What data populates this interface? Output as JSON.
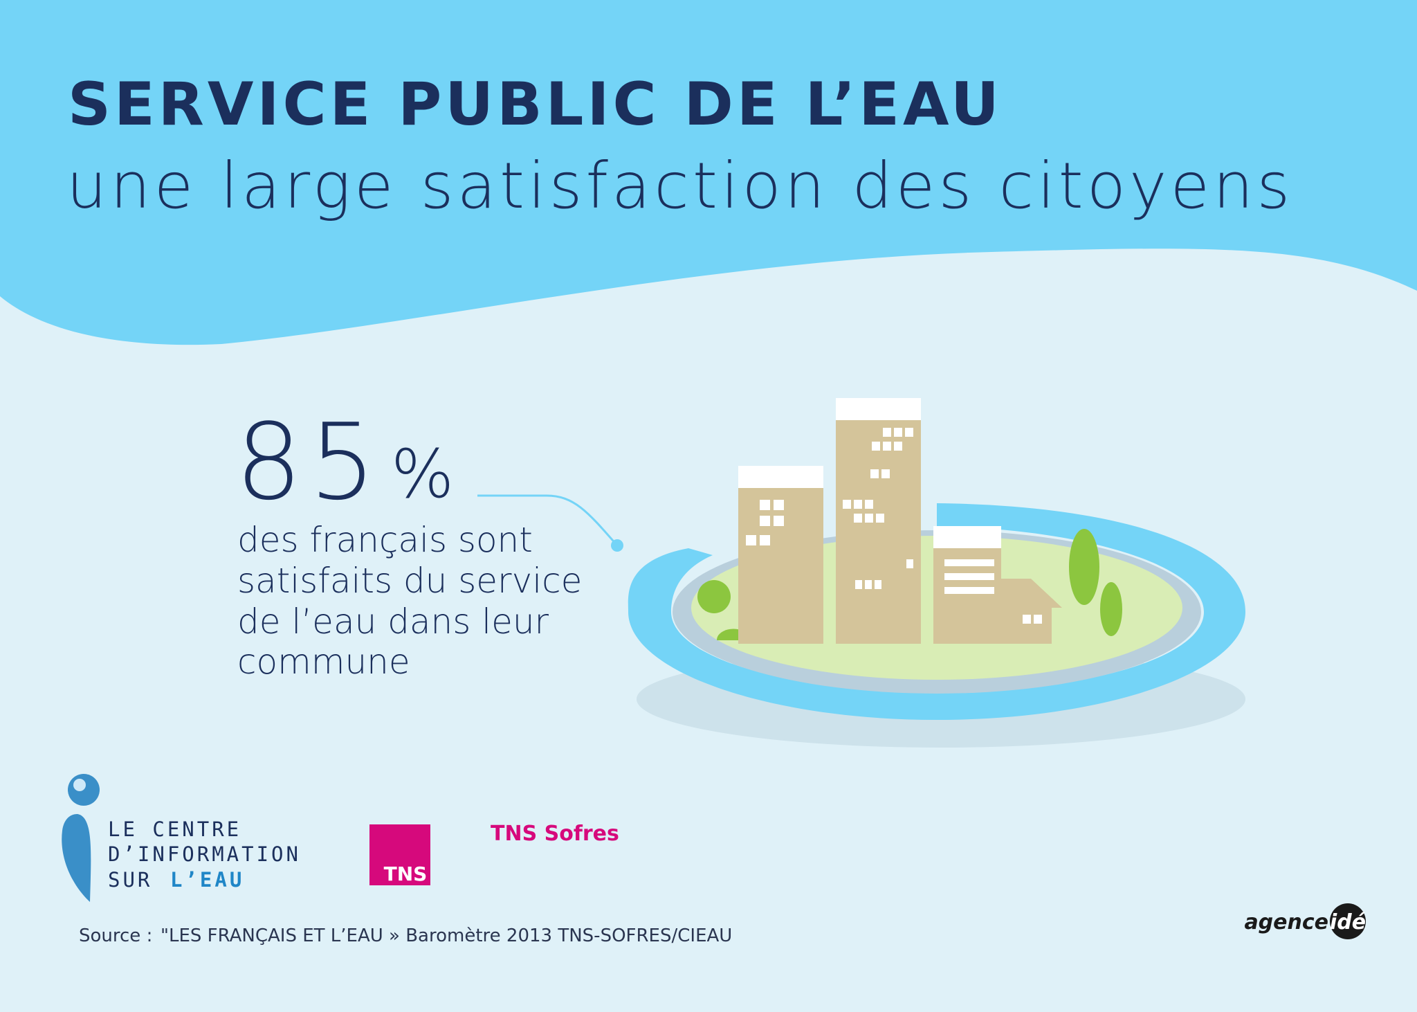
{
  "header": {
    "title": "SERVICE PUBLIC DE L’EAU",
    "subtitle": "une large satisfaction des citoyens"
  },
  "stat": {
    "number": "85",
    "unit": "%",
    "description": [
      "des français sont",
      "satisfaits du service",
      "de l’eau dans leur",
      "commune"
    ]
  },
  "logos": {
    "cieau": {
      "line1": "LE CENTRE",
      "line2": "D’INFORMATION",
      "line3_prefix": "SUR",
      "line3_highlight": "L’EAU"
    },
    "tns_box": "TNS",
    "tns_name": "TNS Sofres",
    "agency": {
      "prefix": "agence",
      "suffix": "idé"
    }
  },
  "source": {
    "label": "Source :",
    "text": "\"LES FRANÇAIS ET L’EAU » Baromètre 2013 TNS-SOFRES/CIEAU"
  }
}
